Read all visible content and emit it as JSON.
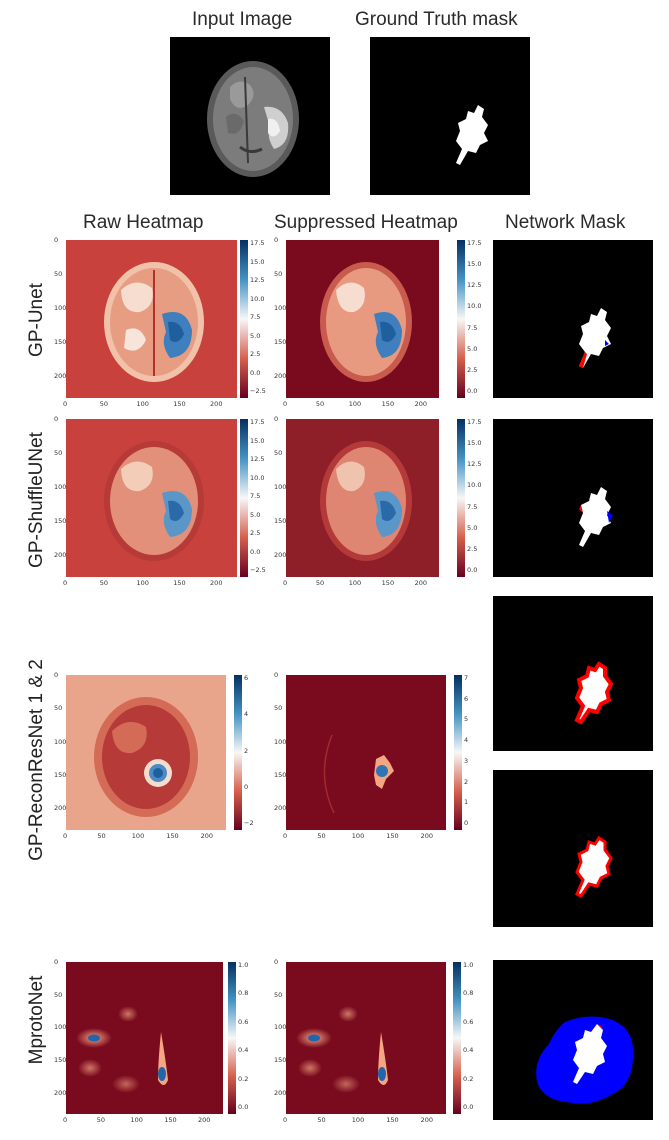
{
  "top": {
    "input_title": "Input Image",
    "gt_title": "Ground Truth mask"
  },
  "columns": {
    "raw": "Raw Heatmap",
    "suppressed": "Suppressed Heatmap",
    "mask": "Network Mask"
  },
  "rows": [
    {
      "label": "GP-Unet"
    },
    {
      "label": "GP-ShuffleUNet"
    },
    {
      "label": "GP-ReconResNet 1 & 2"
    },
    {
      "label": "MprotoNet"
    }
  ],
  "ticks": {
    "x_axis": [
      "0",
      "50",
      "100",
      "150",
      "200"
    ],
    "y_axis": [
      "0",
      "50",
      "100",
      "150",
      "200"
    ],
    "cbar_gp_raw": [
      "17.5",
      "15.0",
      "12.5",
      "10.0",
      "7.5",
      "5.0",
      "2.5",
      "0.0",
      "−2.5"
    ],
    "cbar_gp_sup": [
      "17.5",
      "15.0",
      "12.5",
      "10.0",
      "7.5",
      "5.0",
      "2.5",
      "0.0"
    ],
    "cbar_recon_raw": [
      "6",
      "4",
      "2",
      "0",
      "−2"
    ],
    "cbar_recon_sup": [
      "7",
      "6",
      "5",
      "4",
      "3",
      "2",
      "1",
      "0"
    ],
    "cbar_mproto": [
      "1.0",
      "0.8",
      "0.6",
      "0.4",
      "0.2",
      "0.0"
    ]
  },
  "colors": {
    "heat_low": "#7a0a1e",
    "heat_mid": "#c93a35",
    "heat_white": "#f7f4f2",
    "heat_high": "#1f5f9e",
    "mask_white": "#ffffff",
    "mask_red": "#ff0000",
    "mask_blue": "#0000ff"
  }
}
